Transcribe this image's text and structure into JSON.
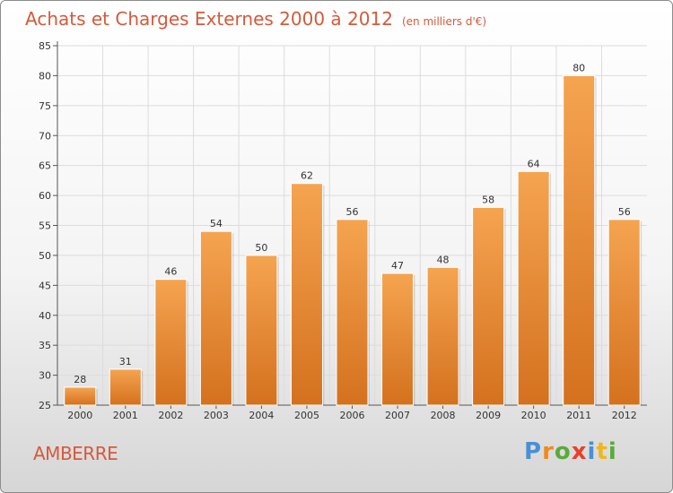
{
  "chart_data": {
    "type": "bar",
    "title": "Achats et Charges Externes 2000 à 2012",
    "subtitle": "(en milliers d'€)",
    "categories": [
      "2000",
      "2001",
      "2002",
      "2003",
      "2004",
      "2005",
      "2006",
      "2007",
      "2008",
      "2009",
      "2010",
      "2011",
      "2012"
    ],
    "values": [
      28,
      31,
      46,
      54,
      50,
      62,
      56,
      47,
      48,
      58,
      64,
      80,
      56
    ],
    "ylim": [
      25,
      85
    ],
    "yticks": [
      25,
      30,
      35,
      40,
      45,
      50,
      55,
      60,
      65,
      70,
      75,
      80,
      85
    ],
    "grid": true,
    "bar_color_top": "#f5a450",
    "bar_color_bottom": "#d4711e"
  },
  "footer": {
    "commune": "AMBERRE",
    "logo": "Proxiti",
    "logo_colors": [
      "#4a8fd4",
      "#f08a1c",
      "#5aaa3a",
      "#e8402a",
      "#4a8fd4",
      "#f0b71c",
      "#5aaa3a"
    ]
  },
  "colors": {
    "title": "#d45a3c"
  }
}
